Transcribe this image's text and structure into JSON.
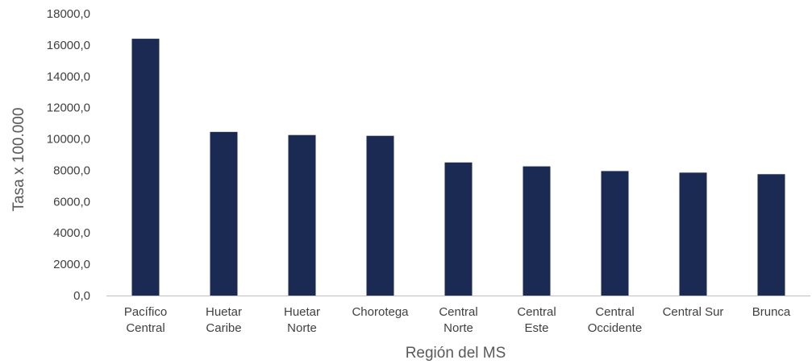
{
  "chart_data": {
    "type": "bar",
    "xlabel": "Región del MS",
    "ylabel": "Tasa x 100.000",
    "categories": [
      [
        "Pacífico",
        "Central"
      ],
      [
        "Huetar",
        "Caribe"
      ],
      [
        "Huetar",
        "Norte"
      ],
      [
        "Chorotega"
      ],
      [
        "Central",
        "Norte"
      ],
      [
        "Central",
        "Este"
      ],
      [
        "Central",
        "Occidente"
      ],
      [
        "Central Sur"
      ],
      [
        "Brunca"
      ]
    ],
    "values": [
      16400,
      10450,
      10250,
      10200,
      8500,
      8250,
      7950,
      7850,
      7750
    ],
    "ylim": [
      0,
      18000
    ],
    "yticks": [
      "0,0",
      "2000,0",
      "4000,0",
      "6000,0",
      "8000,0",
      "10000,0",
      "12000,0",
      "14000,0",
      "16000,0",
      "18000,0"
    ],
    "bar_color": "#1b2a52",
    "grid": false,
    "legend": "none"
  }
}
